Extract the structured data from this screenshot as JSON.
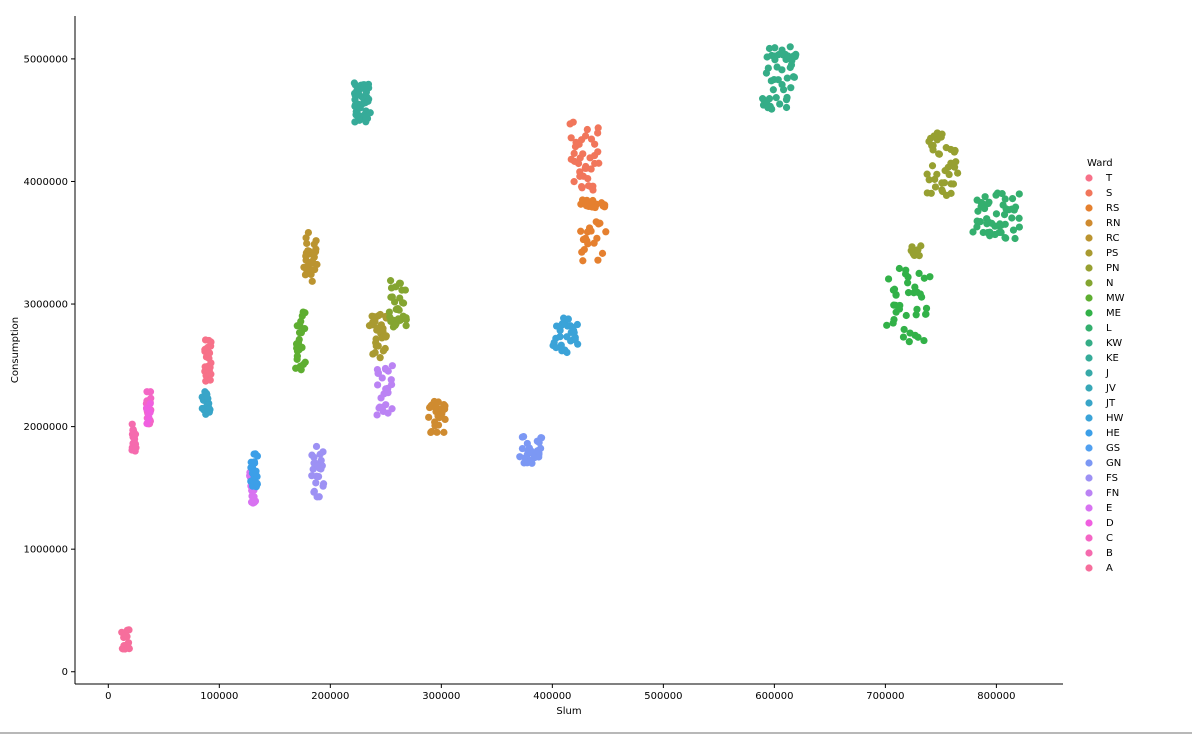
{
  "chart_data": {
    "type": "scatter",
    "title": "",
    "xlabel": "Slum",
    "ylabel": "Consumption",
    "xlim": [
      -30000,
      860000
    ],
    "ylim": [
      -100000,
      5350000
    ],
    "x_ticks": [
      0,
      100000,
      200000,
      300000,
      400000,
      500000,
      600000,
      700000,
      800000
    ],
    "y_ticks": [
      0,
      1000000,
      2000000,
      3000000,
      4000000,
      5000000
    ],
    "grid": false,
    "legend": {
      "title": "Ward",
      "placement": "right",
      "entries": [
        {
          "name": "T",
          "color": "#f77189"
        },
        {
          "name": "S",
          "color": "#f1765b"
        },
        {
          "name": "RS",
          "color": "#e5802f"
        },
        {
          "name": "RN",
          "color": "#cf8b30"
        },
        {
          "name": "RC",
          "color": "#bb9430"
        },
        {
          "name": "PS",
          "color": "#a99a31"
        },
        {
          "name": "PN",
          "color": "#97a031"
        },
        {
          "name": "N",
          "color": "#84a531"
        },
        {
          "name": "MW",
          "color": "#5eae31"
        },
        {
          "name": "ME",
          "color": "#32b148"
        },
        {
          "name": "L",
          "color": "#34af6e"
        },
        {
          "name": "KW",
          "color": "#35ad87"
        },
        {
          "name": "KE",
          "color": "#36ab99"
        },
        {
          "name": "J",
          "color": "#37a9a8"
        },
        {
          "name": "JV",
          "color": "#38a7b7"
        },
        {
          "name": "JT",
          "color": "#39a5c8"
        },
        {
          "name": "HW",
          "color": "#3ba3d8"
        },
        {
          "name": "HE",
          "color": "#3c9fe8"
        },
        {
          "name": "GS",
          "color": "#51a0f0"
        },
        {
          "name": "GN",
          "color": "#7c98f4"
        },
        {
          "name": "FS",
          "color": "#9d91f4"
        },
        {
          "name": "FN",
          "color": "#bb83f4"
        },
        {
          "name": "E",
          "color": "#d873f1"
        },
        {
          "name": "D",
          "color": "#f05fe0"
        },
        {
          "name": "C",
          "color": "#f466c5"
        },
        {
          "name": "B",
          "color": "#f56bae"
        },
        {
          "name": "A",
          "color": "#f66e9c"
        }
      ]
    },
    "clusters": [
      {
        "ward": "A",
        "x": [
          12000,
          19000
        ],
        "y": [
          180000,
          350000
        ],
        "n": 18
      },
      {
        "ward": "B",
        "x": [
          21000,
          25000
        ],
        "y": [
          1780000,
          2050000
        ],
        "n": 22
      },
      {
        "ward": "C",
        "x": [
          34000,
          39000
        ],
        "y": [
          2010000,
          2290000
        ],
        "n": 22
      },
      {
        "ward": "D",
        "x": [
          34000,
          38000
        ],
        "y": [
          2020000,
          2200000
        ],
        "n": 10
      },
      {
        "ward": "T",
        "x": [
          86000,
          93000
        ],
        "y": [
          2370000,
          2730000
        ],
        "n": 28
      },
      {
        "ward": "JT",
        "x": [
          84000,
          92000
        ],
        "y": [
          2100000,
          2290000
        ],
        "n": 24
      },
      {
        "ward": "E",
        "x": [
          127000,
          133000
        ],
        "y": [
          1370000,
          1640000
        ],
        "n": 20
      },
      {
        "ward": "HE",
        "x": [
          128000,
          135000
        ],
        "y": [
          1500000,
          1780000
        ],
        "n": 20
      },
      {
        "ward": "FS",
        "x": [
          182000,
          195000
        ],
        "y": [
          1400000,
          1850000
        ],
        "n": 24
      },
      {
        "ward": "RC",
        "x": [
          176000,
          188000
        ],
        "y": [
          3170000,
          3600000
        ],
        "n": 28
      },
      {
        "ward": "MW",
        "x": [
          168000,
          178000
        ],
        "y": [
          2440000,
          2950000
        ],
        "n": 28
      },
      {
        "ward": "KE",
        "x": [
          220000,
          236000
        ],
        "y": [
          4420000,
          4820000
        ],
        "n": 48
      },
      {
        "ward": "PS",
        "x": [
          235000,
          252000
        ],
        "y": [
          2560000,
          2930000
        ],
        "n": 30
      },
      {
        "ward": "N",
        "x": [
          252000,
          270000
        ],
        "y": [
          2810000,
          3230000
        ],
        "n": 30
      },
      {
        "ward": "FN",
        "x": [
          240000,
          257000
        ],
        "y": [
          2090000,
          2520000
        ],
        "n": 24
      },
      {
        "ward": "RN",
        "x": [
          288000,
          305000
        ],
        "y": [
          1950000,
          2220000
        ],
        "n": 30
      },
      {
        "ward": "GN",
        "x": [
          370000,
          393000
        ],
        "y": [
          1690000,
          1920000
        ],
        "n": 28
      },
      {
        "ward": "HW",
        "x": [
          400000,
          425000
        ],
        "y": [
          2600000,
          2890000
        ],
        "n": 30
      },
      {
        "ward": "S",
        "x": [
          415000,
          443000
        ],
        "y": [
          3930000,
          4500000
        ],
        "n": 40
      },
      {
        "ward": "RS",
        "x": [
          423000,
          449000
        ],
        "y": [
          3340000,
          3850000
        ],
        "n": 36
      },
      {
        "ward": "KW",
        "x": [
          587000,
          622000
        ],
        "y": [
          4590000,
          5100000
        ],
        "n": 50
      },
      {
        "ward": "PN",
        "x": [
          722000,
          732000
        ],
        "y": [
          3390000,
          3480000
        ],
        "n": 10
      },
      {
        "ward": "PN",
        "x": [
          735000,
          766000
        ],
        "y": [
          3880000,
          4400000
        ],
        "n": 40
      },
      {
        "ward": "ME",
        "x": [
          700000,
          742000
        ],
        "y": [
          2690000,
          3300000
        ],
        "n": 40
      },
      {
        "ward": "L",
        "x": [
          778000,
          822000
        ],
        "y": [
          3530000,
          3920000
        ],
        "n": 50
      }
    ]
  }
}
